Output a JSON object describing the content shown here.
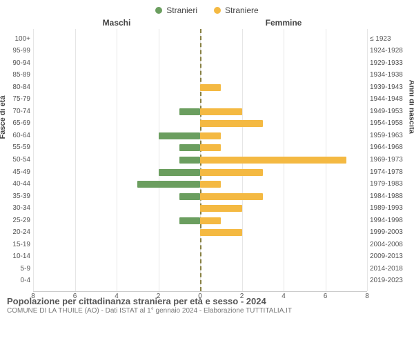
{
  "legend": {
    "m": {
      "label": "Stranieri",
      "color": "#6b9e5f"
    },
    "f": {
      "label": "Straniere",
      "color": "#f4b942"
    }
  },
  "headers": {
    "m": "Maschi",
    "f": "Femmine"
  },
  "y_titles": {
    "left": "Fasce di età",
    "right": "Anni di nascita"
  },
  "chart": {
    "type": "pyramid-bar",
    "xlim": 8,
    "xtick_step": 2,
    "background_color": "#ffffff",
    "grid_color": "#e6e6e6",
    "zero_line_color": "#878042",
    "bar_color_m": "#6b9e5f",
    "bar_color_f": "#f4b942",
    "label_fontsize": 10,
    "rows": [
      {
        "age": "100+",
        "birth": "≤ 1923",
        "m": 0,
        "f": 0
      },
      {
        "age": "95-99",
        "birth": "1924-1928",
        "m": 0,
        "f": 0
      },
      {
        "age": "90-94",
        "birth": "1929-1933",
        "m": 0,
        "f": 0
      },
      {
        "age": "85-89",
        "birth": "1934-1938",
        "m": 0,
        "f": 0
      },
      {
        "age": "80-84",
        "birth": "1939-1943",
        "m": 0,
        "f": 1
      },
      {
        "age": "75-79",
        "birth": "1944-1948",
        "m": 0,
        "f": 0
      },
      {
        "age": "70-74",
        "birth": "1949-1953",
        "m": 1,
        "f": 2
      },
      {
        "age": "65-69",
        "birth": "1954-1958",
        "m": 0,
        "f": 3
      },
      {
        "age": "60-64",
        "birth": "1959-1963",
        "m": 2,
        "f": 1
      },
      {
        "age": "55-59",
        "birth": "1964-1968",
        "m": 1,
        "f": 1
      },
      {
        "age": "50-54",
        "birth": "1969-1973",
        "m": 1,
        "f": 7
      },
      {
        "age": "45-49",
        "birth": "1974-1978",
        "m": 2,
        "f": 3
      },
      {
        "age": "40-44",
        "birth": "1979-1983",
        "m": 3,
        "f": 1
      },
      {
        "age": "35-39",
        "birth": "1984-1988",
        "m": 1,
        "f": 3
      },
      {
        "age": "30-34",
        "birth": "1989-1993",
        "m": 0,
        "f": 2
      },
      {
        "age": "25-29",
        "birth": "1994-1998",
        "m": 1,
        "f": 1
      },
      {
        "age": "20-24",
        "birth": "1999-2003",
        "m": 0,
        "f": 2
      },
      {
        "age": "15-19",
        "birth": "2004-2008",
        "m": 0,
        "f": 0
      },
      {
        "age": "10-14",
        "birth": "2009-2013",
        "m": 0,
        "f": 0
      },
      {
        "age": "5-9",
        "birth": "2014-2018",
        "m": 0,
        "f": 0
      },
      {
        "age": "0-4",
        "birth": "2019-2023",
        "m": 0,
        "f": 0
      }
    ]
  },
  "caption": {
    "title": "Popolazione per cittadinanza straniera per età e sesso - 2024",
    "subtitle": "COMUNE DI LA THUILE (AO) - Dati ISTAT al 1° gennaio 2024 - Elaborazione TUTTITALIA.IT"
  }
}
